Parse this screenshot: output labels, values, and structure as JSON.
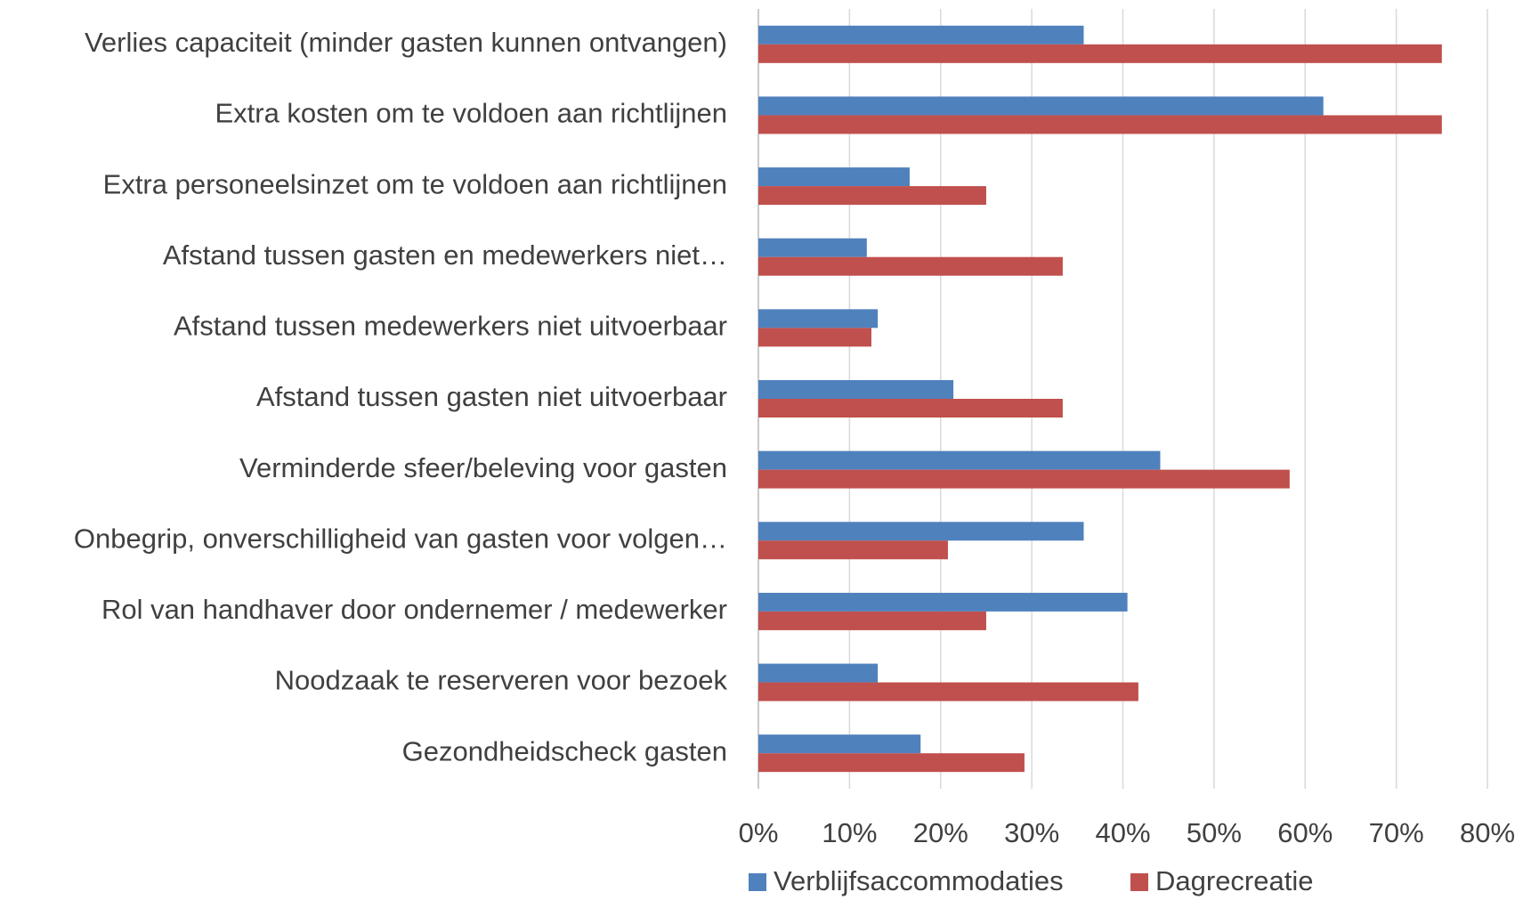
{
  "chart_data": {
    "type": "bar",
    "orientation": "horizontal",
    "categories": [
      "Verlies capaciteit (minder gasten kunnen ontvangen)",
      "Extra kosten om te voldoen aan richtlijnen",
      "Extra personeelsinzet om te voldoen aan richtlijnen",
      "Afstand tussen gasten en medewerkers niet…",
      "Afstand tussen medewerkers niet uitvoerbaar",
      "Afstand tussen gasten niet uitvoerbaar",
      "Verminderde sfeer/beleving voor gasten",
      "Onbegrip, onverschilligheid van gasten voor volgen…",
      "Rol van handhaver door ondernemer / medewerker",
      "Noodzaak te reserveren voor bezoek",
      "Gezondheidscheck gasten"
    ],
    "series": [
      {
        "name": "Verblijfsaccommodaties",
        "color": "#4f81bd",
        "values": [
          35.7,
          62.0,
          16.6,
          11.9,
          13.1,
          21.4,
          44.1,
          35.7,
          40.5,
          13.1,
          17.8
        ]
      },
      {
        "name": "Dagrecreatie",
        "color": "#c0504d",
        "values": [
          75.0,
          75.0,
          25.0,
          33.4,
          12.4,
          33.4,
          58.3,
          20.8,
          25.0,
          41.7,
          29.2
        ]
      }
    ],
    "xlim": [
      0,
      80
    ],
    "xticks": [
      {
        "value": 0,
        "label": "0%"
      },
      {
        "value": 10,
        "label": "10%"
      },
      {
        "value": 20,
        "label": "20%"
      },
      {
        "value": 30,
        "label": "30%"
      },
      {
        "value": 40,
        "label": "40%"
      },
      {
        "value": 50,
        "label": "50%"
      },
      {
        "value": 60,
        "label": "60%"
      },
      {
        "value": 70,
        "label": "70%"
      },
      {
        "value": 80,
        "label": "80%"
      }
    ],
    "grid": true,
    "legend": "bottom"
  }
}
